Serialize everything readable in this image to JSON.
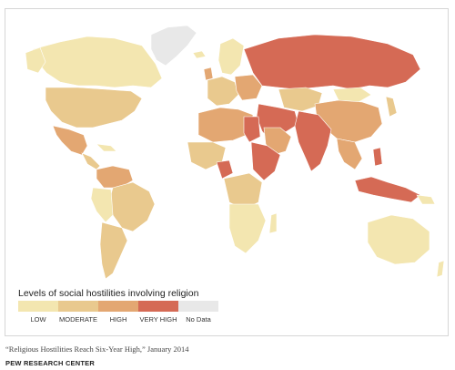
{
  "legend": {
    "title": "Levels of social hostilities involving religion",
    "items": [
      {
        "label": "LOW",
        "color": "#f3e6b0"
      },
      {
        "label": "MODERATE",
        "color": "#e9c98e"
      },
      {
        "label": "HIGH",
        "color": "#e3a772"
      },
      {
        "label": "VERY HIGH",
        "color": "#d56a55"
      },
      {
        "label": "No Data",
        "color": "#e8e8e8"
      }
    ]
  },
  "source": "“Religious Hostilities Reach Six-Year High,” January 2014",
  "brand": "PEW RESEARCH CENTER",
  "colors": {
    "low": "#f3e6b0",
    "moderate": "#e9c98e",
    "high": "#e3a772",
    "very_high": "#d56a55",
    "no_data": "#e8e8e8",
    "border": "#ffffff"
  }
}
